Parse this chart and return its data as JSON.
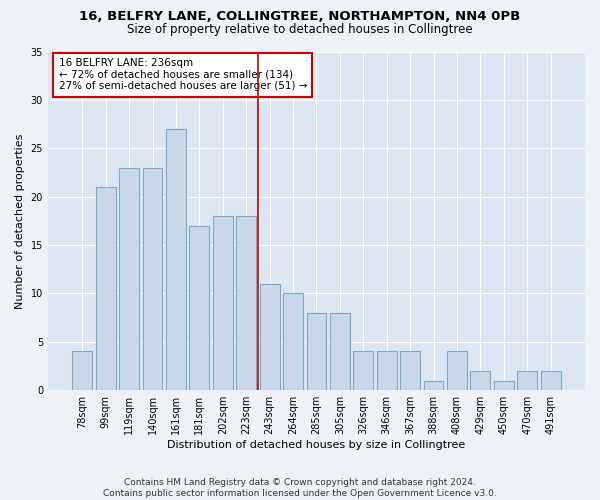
{
  "title1": "16, BELFRY LANE, COLLINGTREE, NORTHAMPTON, NN4 0PB",
  "title2": "Size of property relative to detached houses in Collingtree",
  "xlabel": "Distribution of detached houses by size in Collingtree",
  "ylabel": "Number of detached properties",
  "categories": [
    "78sqm",
    "99sqm",
    "119sqm",
    "140sqm",
    "161sqm",
    "181sqm",
    "202sqm",
    "223sqm",
    "243sqm",
    "264sqm",
    "285sqm",
    "305sqm",
    "326sqm",
    "346sqm",
    "367sqm",
    "388sqm",
    "408sqm",
    "429sqm",
    "450sqm",
    "470sqm",
    "491sqm"
  ],
  "values": [
    4,
    21,
    23,
    23,
    27,
    17,
    18,
    18,
    11,
    10,
    8,
    8,
    4,
    4,
    4,
    1,
    4,
    2,
    1,
    2,
    2
  ],
  "bar_color": "#c8d8e8",
  "bar_edge_color": "#7aaac8",
  "vline_color": "#cc0000",
  "annotation_text": "16 BELFRY LANE: 236sqm\n← 72% of detached houses are smaller (134)\n27% of semi-detached houses are larger (51) →",
  "annotation_box_color": "#ffffff",
  "annotation_box_edgecolor": "#cc0000",
  "ylim": [
    0,
    35
  ],
  "yticks": [
    0,
    5,
    10,
    15,
    20,
    25,
    30,
    35
  ],
  "fig_background_color": "#eef2f7",
  "ax_background_color": "#dde6f0",
  "footer": "Contains HM Land Registry data © Crown copyright and database right 2024.\nContains public sector information licensed under the Open Government Licence v3.0.",
  "title1_fontsize": 9.5,
  "title2_fontsize": 8.5,
  "xlabel_fontsize": 8,
  "ylabel_fontsize": 8,
  "tick_fontsize": 7,
  "annotation_fontsize": 7.5,
  "footer_fontsize": 6.5
}
